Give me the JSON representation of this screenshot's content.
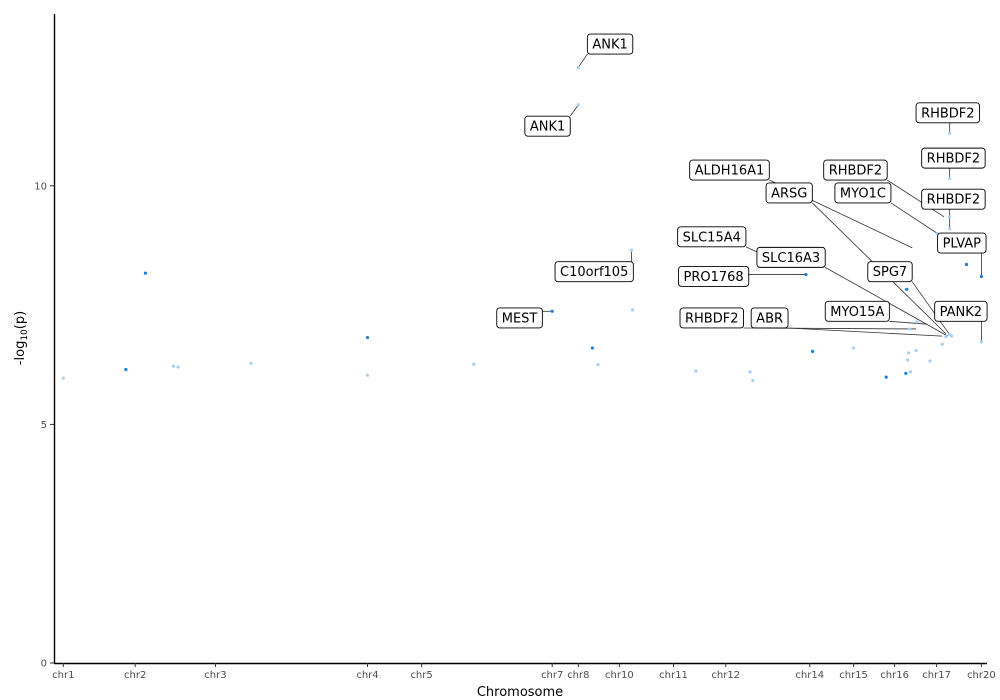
{
  "chart_data": {
    "type": "scatter",
    "xlabel": "Chromosome",
    "ylabel": "-log10(p)",
    "ylabel_main": "-log",
    "ylabel_sub": "10",
    "ylabel_tail": "(p)",
    "xlim": [
      0,
      100
    ],
    "ylim": [
      0,
      13.6
    ],
    "y_ticks": [
      0,
      5,
      10
    ],
    "x_ticks": [
      {
        "label": "chr1",
        "pos": 1
      },
      {
        "label": "chr2",
        "pos": 8.7
      },
      {
        "label": "chr3",
        "pos": 17.3
      },
      {
        "label": "chr4",
        "pos": 33.6
      },
      {
        "label": "chr5",
        "pos": 39.4
      },
      {
        "label": "chr7",
        "pos": 53.4
      },
      {
        "label": "chr8",
        "pos": 56.2
      },
      {
        "label": "chr10",
        "pos": 60.6
      },
      {
        "label": "chr11",
        "pos": 66.4
      },
      {
        "label": "chr12",
        "pos": 72.0
      },
      {
        "label": "chr14",
        "pos": 81.0
      },
      {
        "label": "chr15",
        "pos": 85.7
      },
      {
        "label": "chr16",
        "pos": 90.1
      },
      {
        "label": "chr17",
        "pos": 94.6
      },
      {
        "label": "chr20",
        "pos": 99.4
      }
    ],
    "grid": false,
    "legend": "none",
    "colors": {
      "dark": "#1a7ee0",
      "light": "#a9d0f0"
    },
    "points": [
      {
        "x": 1.0,
        "y": 5.97,
        "shade": "light"
      },
      {
        "x": 7.7,
        "y": 6.15,
        "shade": "dark"
      },
      {
        "x": 9.8,
        "y": 8.17,
        "shade": "dark"
      },
      {
        "x": 12.8,
        "y": 6.22,
        "shade": "light"
      },
      {
        "x": 13.3,
        "y": 6.2,
        "shade": "light"
      },
      {
        "x": 21.1,
        "y": 6.28,
        "shade": "light"
      },
      {
        "x": 33.6,
        "y": 6.82,
        "shade": "dark"
      },
      {
        "x": 33.6,
        "y": 6.03,
        "shade": "light"
      },
      {
        "x": 45.0,
        "y": 6.26,
        "shade": "light"
      },
      {
        "x": 53.4,
        "y": 7.37,
        "shade": "dark"
      },
      {
        "x": 56.2,
        "y": 12.48,
        "shade": "light"
      },
      {
        "x": 56.2,
        "y": 11.7,
        "shade": "light"
      },
      {
        "x": 57.7,
        "y": 6.6,
        "shade": "dark"
      },
      {
        "x": 58.3,
        "y": 6.25,
        "shade": "light"
      },
      {
        "x": 61.9,
        "y": 8.65,
        "shade": "light"
      },
      {
        "x": 62.0,
        "y": 7.4,
        "shade": "light"
      },
      {
        "x": 68.8,
        "y": 6.12,
        "shade": "light"
      },
      {
        "x": 74.6,
        "y": 6.1,
        "shade": "light"
      },
      {
        "x": 74.9,
        "y": 5.92,
        "shade": "light"
      },
      {
        "x": 80.6,
        "y": 8.14,
        "shade": "dark"
      },
      {
        "x": 81.3,
        "y": 6.53,
        "shade": "dark"
      },
      {
        "x": 85.7,
        "y": 6.6,
        "shade": "light"
      },
      {
        "x": 89.2,
        "y": 5.99,
        "shade": "dark"
      },
      {
        "x": 91.3,
        "y": 6.07,
        "shade": "dark"
      },
      {
        "x": 91.4,
        "y": 7.83,
        "shade": "dark"
      },
      {
        "x": 91.5,
        "y": 6.35,
        "shade": "light"
      },
      {
        "x": 91.6,
        "y": 6.5,
        "shade": "light"
      },
      {
        "x": 91.7,
        "y": 7.0,
        "shade": "light"
      },
      {
        "x": 91.8,
        "y": 6.1,
        "shade": "light"
      },
      {
        "x": 92.4,
        "y": 6.55,
        "shade": "light"
      },
      {
        "x": 92.5,
        "y": 7.15,
        "shade": "light"
      },
      {
        "x": 93.9,
        "y": 6.33,
        "shade": "light"
      },
      {
        "x": 95.2,
        "y": 6.68,
        "shade": "light"
      },
      {
        "x": 95.6,
        "y": 6.84,
        "shade": "light"
      },
      {
        "x": 96.0,
        "y": 6.88,
        "shade": "light"
      },
      {
        "x": 96.0,
        "y": 11.1,
        "shade": "light"
      },
      {
        "x": 96.0,
        "y": 10.15,
        "shade": "light"
      },
      {
        "x": 96.0,
        "y": 9.35,
        "shade": "light"
      },
      {
        "x": 96.0,
        "y": 9.1,
        "shade": "light"
      },
      {
        "x": 96.2,
        "y": 6.85,
        "shade": "light"
      },
      {
        "x": 97.8,
        "y": 8.35,
        "shade": "dark"
      },
      {
        "x": 99.4,
        "y": 8.1,
        "shade": "dark"
      },
      {
        "x": 99.4,
        "y": 6.73,
        "shade": "light"
      },
      {
        "x": 94.7,
        "y": 9.0,
        "shade": "light"
      }
    ],
    "labels": [
      {
        "text": "ANK1",
        "x": 56.2,
        "y": 12.48,
        "lx": 59.6,
        "ly": 12.97
      },
      {
        "text": "ANK1",
        "x": 56.2,
        "y": 11.7,
        "lx": 52.9,
        "ly": 11.25
      },
      {
        "text": "RHBDF2",
        "x": 96.0,
        "y": 11.1,
        "lx": 95.8,
        "ly": 11.53
      },
      {
        "text": "RHBDF2",
        "x": 96.0,
        "y": 10.15,
        "lx": 96.4,
        "ly": 10.58
      },
      {
        "text": "ALDH16A1",
        "x": 92.0,
        "y": 8.7,
        "lx": 72.4,
        "ly": 10.33
      },
      {
        "text": "RHBDF2",
        "x": 95.4,
        "y": 9.35,
        "lx": 85.9,
        "ly": 10.33
      },
      {
        "text": "RHBDF2",
        "x": 96.0,
        "y": 9.1,
        "lx": 96.4,
        "ly": 9.72
      },
      {
        "text": "ARSG",
        "x": 95.6,
        "y": 6.9,
        "lx": 78.8,
        "ly": 9.85
      },
      {
        "text": "MYO1C",
        "x": 94.7,
        "y": 9.0,
        "lx": 86.7,
        "ly": 9.85
      },
      {
        "text": "SLC15A4",
        "x": 76.6,
        "y": 8.5,
        "lx": 70.5,
        "ly": 8.93
      },
      {
        "text": "PLVAP",
        "x": 99.4,
        "y": 8.1,
        "lx": 97.3,
        "ly": 8.8
      },
      {
        "text": "SLC16A3",
        "x": 95.8,
        "y": 6.85,
        "lx": 79.0,
        "ly": 8.5
      },
      {
        "text": "C10orf105",
        "x": 61.9,
        "y": 8.65,
        "lx": 57.9,
        "ly": 8.2
      },
      {
        "text": "SPG7",
        "x": 96.0,
        "y": 6.88,
        "lx": 89.6,
        "ly": 8.2
      },
      {
        "text": "PRO1768",
        "x": 80.6,
        "y": 8.14,
        "lx": 70.7,
        "ly": 8.1
      },
      {
        "text": "MYO15A",
        "x": 93.6,
        "y": 7.1,
        "lx": 86.1,
        "ly": 7.37
      },
      {
        "text": "PANK2",
        "x": 99.4,
        "y": 6.73,
        "lx": 97.2,
        "ly": 7.37
      },
      {
        "text": "MEST",
        "x": 53.4,
        "y": 7.37,
        "lx": 49.9,
        "ly": 7.23
      },
      {
        "text": "RHBDF2",
        "x": 92.4,
        "y": 7.0,
        "lx": 70.5,
        "ly": 7.23
      },
      {
        "text": "ABR",
        "x": 95.2,
        "y": 6.85,
        "lx": 76.7,
        "ly": 7.23
      }
    ]
  }
}
